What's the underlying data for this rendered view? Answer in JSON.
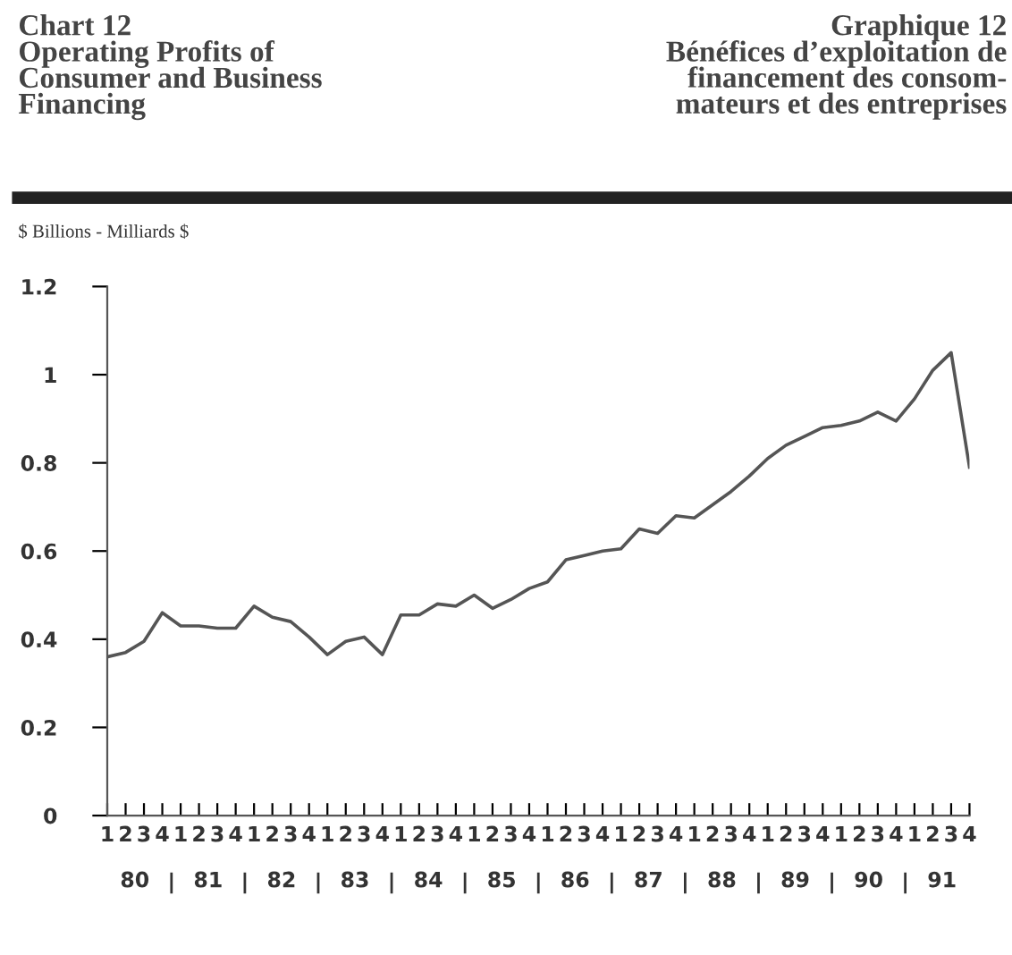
{
  "chart_data": {
    "type": "line",
    "title": "Chart 12\nOperating Profits of\nConsumer and Business\nFinancing",
    "subtitle": "Graphique 12\nBénéfices d’exploitation de\nfinancement des consom-\nmateurs et des entreprises",
    "ylabel": "$ Billions - Milliards $",
    "categories": [
      "1",
      "2",
      "3",
      "4",
      "1",
      "2",
      "3",
      "4",
      "1",
      "2",
      "3",
      "4",
      "1",
      "2",
      "3",
      "4",
      "1",
      "2",
      "3",
      "4",
      "1",
      "2",
      "3",
      "4",
      "1",
      "2",
      "3",
      "4",
      "1",
      "2",
      "3",
      "4",
      "1",
      "2",
      "3",
      "4",
      "1",
      "2",
      "3",
      "4",
      "1",
      "2",
      "3",
      "4",
      "1",
      "2",
      "3",
      "4"
    ],
    "annotations": [
      "80",
      "81",
      "82",
      "83",
      "84",
      "85",
      "86",
      "87",
      "88",
      "89",
      "90",
      "91"
    ],
    "series": [
      {
        "color": "#555555",
        "values": [
          0.36,
          0.37,
          0.395,
          0.46,
          0.43,
          0.43,
          0.425,
          0.425,
          0.475,
          0.45,
          0.44,
          0.405,
          0.365,
          0.395,
          0.405,
          0.365,
          0.455,
          0.455,
          0.48,
          0.475,
          0.5,
          0.47,
          0.49,
          0.515,
          0.53,
          0.58,
          0.59,
          0.6,
          0.605,
          0.65,
          0.64,
          0.68,
          0.675,
          0.705,
          0.735,
          0.77,
          0.81,
          0.84,
          0.86,
          0.88,
          0.885,
          0.895,
          0.915,
          0.895,
          0.945,
          1.01,
          1.05,
          0.79
        ]
      }
    ],
    "ylim": [
      0,
      1.2
    ],
    "yticks": [
      0,
      0.2,
      0.4,
      0.6,
      0.8,
      1,
      1.2
    ],
    "grid": false,
    "legend": false,
    "marker": "none",
    "line_style": "solid"
  }
}
